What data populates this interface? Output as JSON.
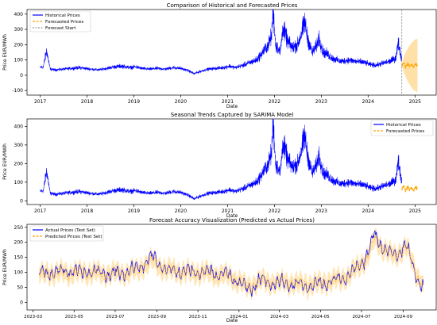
{
  "figure": {
    "colors": {
      "historical": "#0000ff",
      "forecast": "#ffa500",
      "band": "#ffa500",
      "vline": "#808080",
      "axis": "#000000"
    }
  },
  "chart_data": [
    {
      "type": "line",
      "title": "Comparison of Historical and Forecasted Prices",
      "xlabel": "Date",
      "ylabel": "Price EUR/MWh",
      "xticks": [
        "2017",
        "2018",
        "2019",
        "2020",
        "2021",
        "2022",
        "2023",
        "2024",
        "2025"
      ],
      "x_range": [
        "2016-09-20",
        "2025-06-15"
      ],
      "yticks": [
        -100,
        0,
        100,
        200,
        300,
        400
      ],
      "ylim": [
        -130,
        430
      ],
      "grid": false,
      "legend": {
        "position": "top-left",
        "entries": [
          "Historical Prices",
          "Forecasted Prices",
          "Forecast Start"
        ]
      },
      "forecast_start": "2024-09-20",
      "series": [
        {
          "name": "Historical Prices",
          "style": "solid",
          "x": [
            "2017-01-01",
            "2017-01-25",
            "2017-02-20",
            "2017-03-20",
            "2017-05-01",
            "2017-07-01",
            "2017-09-01",
            "2017-11-01",
            "2017-12-15",
            "2018-02-01",
            "2018-04-01",
            "2018-06-01",
            "2018-08-01",
            "2018-10-01",
            "2018-12-01",
            "2019-01-15",
            "2019-03-01",
            "2019-05-01",
            "2019-07-01",
            "2019-09-01",
            "2019-11-01",
            "2020-01-01",
            "2020-03-01",
            "2020-04-15",
            "2020-06-01",
            "2020-08-01",
            "2020-10-01",
            "2020-12-01",
            "2021-01-15",
            "2021-03-01",
            "2021-05-01",
            "2021-07-01",
            "2021-08-15",
            "2021-10-01",
            "2021-11-15",
            "2021-12-10",
            "2021-12-22",
            "2022-01-10",
            "2022-02-15",
            "2022-03-08",
            "2022-04-15",
            "2022-05-20",
            "2022-07-01",
            "2022-08-10",
            "2022-08-25",
            "2022-09-15",
            "2022-10-20",
            "2022-11-20",
            "2022-12-15",
            "2023-01-15",
            "2023-02-15",
            "2023-04-01",
            "2023-06-01",
            "2023-08-01",
            "2023-10-01",
            "2023-12-01",
            "2024-01-15",
            "2024-03-01",
            "2024-05-01",
            "2024-06-15",
            "2024-08-01",
            "2024-08-25",
            "2024-09-20"
          ],
          "y": [
            50,
            55,
            160,
            40,
            35,
            40,
            45,
            50,
            45,
            40,
            35,
            45,
            55,
            60,
            50,
            55,
            45,
            40,
            45,
            40,
            50,
            45,
            30,
            10,
            25,
            40,
            45,
            50,
            60,
            50,
            65,
            85,
            100,
            150,
            200,
            260,
            430,
            200,
            150,
            310,
            220,
            180,
            200,
            300,
            350,
            250,
            150,
            180,
            250,
            150,
            140,
            110,
            90,
            100,
            90,
            85,
            70,
            65,
            80,
            90,
            110,
            210,
            100
          ]
        },
        {
          "name": "Forecasted Prices",
          "style": "dashed",
          "x": [
            "2024-09-20",
            "2024-10-05",
            "2024-10-20",
            "2024-11-05",
            "2024-11-20",
            "2024-12-05",
            "2024-12-20",
            "2025-01-05",
            "2025-01-20"
          ],
          "y": [
            65,
            80,
            55,
            75,
            60,
            70,
            55,
            75,
            65
          ],
          "interval_low": [
            60,
            20,
            -10,
            -40,
            -60,
            -80,
            -95,
            -105,
            -110
          ],
          "interval_high": [
            70,
            120,
            150,
            175,
            195,
            210,
            225,
            235,
            240
          ]
        }
      ]
    },
    {
      "type": "line",
      "title": "Seasonal Trends Captured by SARIMA Model",
      "xlabel": "Date",
      "ylabel": "Price EUR/MWh",
      "xticks": [
        "2017",
        "2018",
        "2019",
        "2020",
        "2021",
        "2022",
        "2023",
        "2024",
        "2025"
      ],
      "x_range": [
        "2016-09-20",
        "2025-06-15"
      ],
      "yticks": [
        0,
        100,
        200,
        300,
        400
      ],
      "ylim": [
        -20,
        440
      ],
      "grid": false,
      "legend": {
        "position": "top-right",
        "entries": [
          "Historical Prices",
          "Forecasted Prices"
        ]
      },
      "series": [
        {
          "name": "Historical Prices",
          "style": "solid"
        },
        {
          "name": "Forecasted Prices",
          "style": "dashed"
        }
      ]
    },
    {
      "type": "line",
      "title": "Forecast Accuracy Visualization (Predicted vs Actual Prices)",
      "xlabel": "Date",
      "ylabel": "Price EUR/MWh",
      "xticks": [
        "2023-03",
        "2023-05",
        "2023-07",
        "2023-09",
        "2023-11",
        "2024-01",
        "2024-03",
        "2024-05",
        "2024-07",
        "2024-09"
      ],
      "x_range": [
        "2023-02-20",
        "2024-10-20"
      ],
      "yticks": [
        0,
        50,
        100,
        150,
        200,
        250
      ],
      "ylim": [
        -25,
        260
      ],
      "grid": false,
      "legend": {
        "position": "top-left",
        "entries": [
          "Actual Prices (Test Set)",
          "Predicted Prices (Test Set)"
        ]
      },
      "series": [
        {
          "name": "Actual Prices (Test Set)",
          "style": "solid",
          "x": [
            "2023-03-10",
            "2023-04-01",
            "2023-05-01",
            "2023-06-01",
            "2023-07-01",
            "2023-08-01",
            "2023-08-25",
            "2023-09-15",
            "2023-10-15",
            "2023-11-15",
            "2023-12-15",
            "2024-01-01",
            "2024-01-15",
            "2024-02-01",
            "2024-02-15",
            "2024-03-15",
            "2024-04-15",
            "2024-05-15",
            "2024-06-10",
            "2024-06-25",
            "2024-07-10",
            "2024-07-20",
            "2024-08-05",
            "2024-08-20",
            "2024-09-05",
            "2024-09-20",
            "2024-10-01"
          ],
          "y": [
            95,
            100,
            105,
            100,
            95,
            110,
            150,
            110,
            105,
            100,
            90,
            70,
            40,
            75,
            65,
            65,
            55,
            70,
            85,
            120,
            160,
            225,
            180,
            150,
            200,
            90,
            50
          ]
        },
        {
          "name": "Predicted Prices (Test Set)",
          "style": "dashed",
          "x": [
            "2023-03-10",
            "2023-04-01",
            "2023-05-01",
            "2023-06-01",
            "2023-07-01",
            "2023-08-01",
            "2023-08-25",
            "2023-09-15",
            "2023-10-15",
            "2023-11-15",
            "2023-12-15",
            "2024-01-01",
            "2024-01-15",
            "2024-02-01",
            "2024-02-15",
            "2024-03-15",
            "2024-04-15",
            "2024-05-15",
            "2024-06-10",
            "2024-06-25",
            "2024-07-10",
            "2024-07-20",
            "2024-08-05",
            "2024-08-20",
            "2024-09-05",
            "2024-09-20",
            "2024-10-01"
          ],
          "y": [
            95,
            98,
            100,
            98,
            95,
            105,
            140,
            108,
            100,
            98,
            88,
            72,
            50,
            72,
            66,
            65,
            58,
            70,
            85,
            115,
            150,
            210,
            175,
            150,
            190,
            95,
            55
          ]
        }
      ]
    }
  ]
}
